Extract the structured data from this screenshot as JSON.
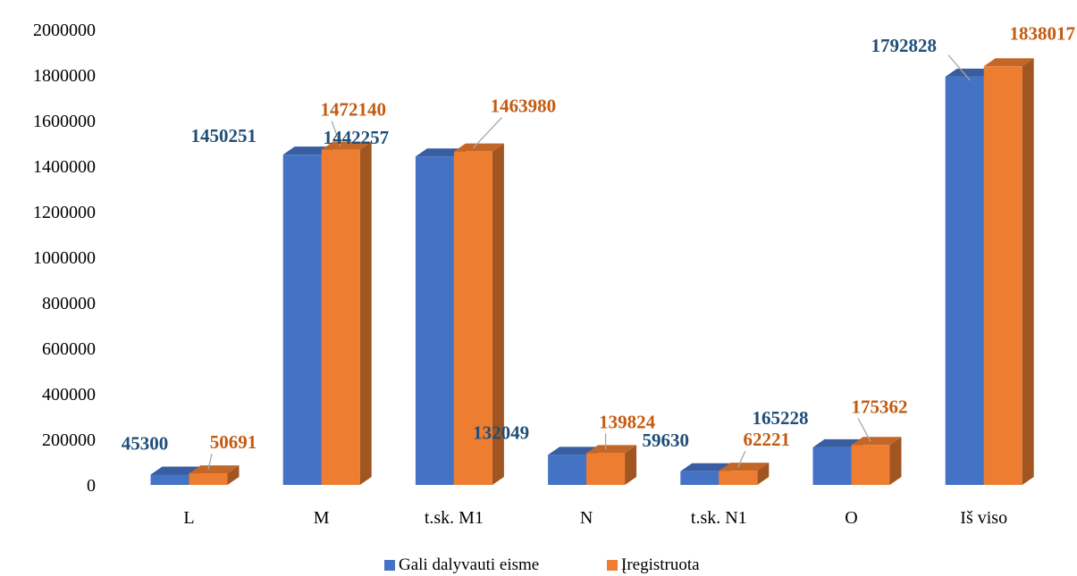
{
  "chart_data": {
    "type": "bar",
    "title": "",
    "xlabel": "",
    "ylabel": "",
    "ylim": [
      0,
      2000000
    ],
    "yticks": [
      0,
      200000,
      400000,
      600000,
      800000,
      1000000,
      1200000,
      1400000,
      1600000,
      1800000,
      2000000
    ],
    "grid": false,
    "style": "3d-clustered-column",
    "legend_position": "bottom",
    "categories": [
      "L",
      "M",
      "t.sk. M1",
      "N",
      "t.sk. N1",
      "O",
      "Iš viso"
    ],
    "series": [
      {
        "name": "Gali dalyvauti eisme",
        "values": [
          45300,
          1450251,
          1442257,
          132049,
          59630,
          165228,
          1792828
        ],
        "color": "#4472C4",
        "label_color": "#1F4E79"
      },
      {
        "name": "Įregistruota",
        "values": [
          50691,
          1472140,
          1463980,
          139824,
          62221,
          175362,
          1838017
        ],
        "color": "#ED7D31",
        "label_color": "#C55A11"
      }
    ]
  }
}
